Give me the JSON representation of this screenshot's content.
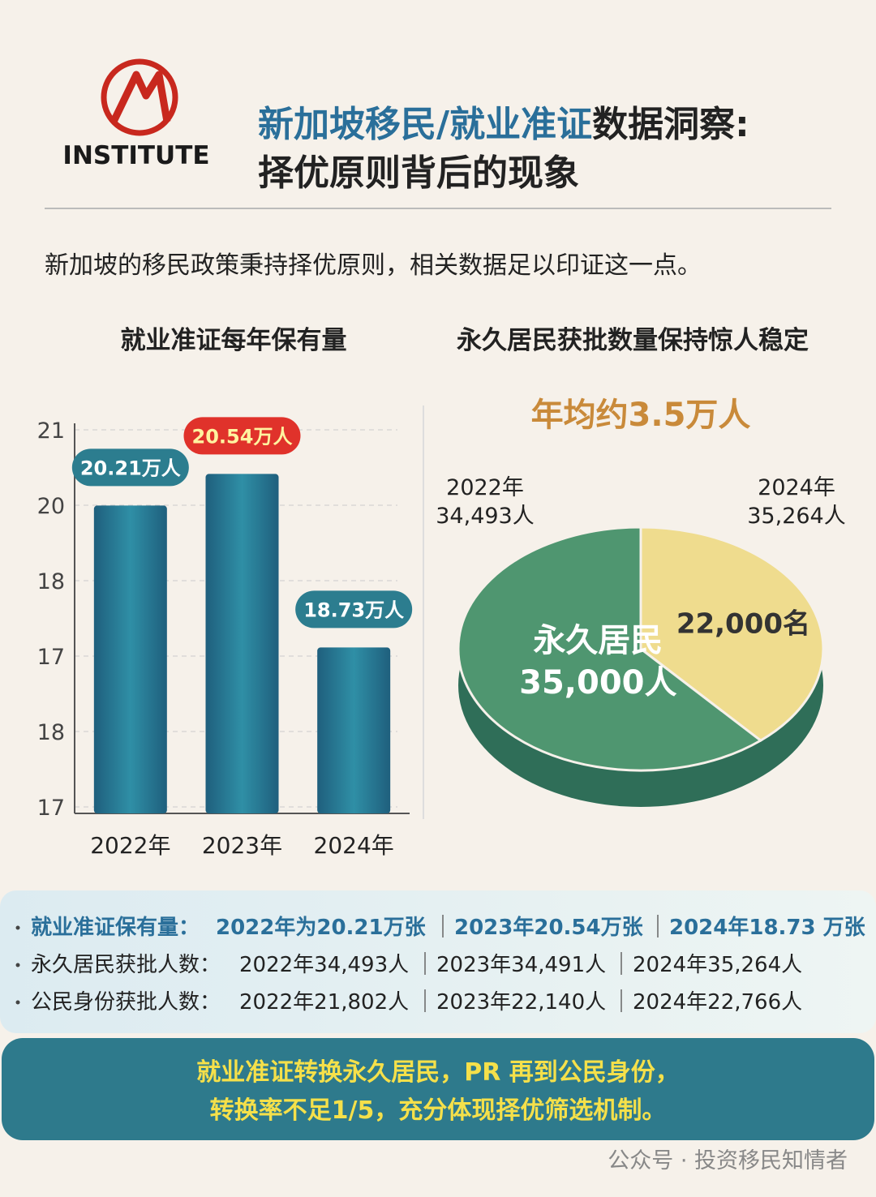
{
  "header": {
    "logo_text": "INSTITUTE",
    "title_highlight": "新加坡移民/就业准证",
    "title_rest": "数据洞察:",
    "title_line2": "择优原则背后的现象"
  },
  "intro": "新加坡的移民政策秉持择优原则，相关数据足以印证这一点。",
  "chart_data": [
    {
      "type": "bar",
      "title": "就业准证每年保有量",
      "categories": [
        "2022年",
        "2023年",
        "2024年"
      ],
      "values": [
        20.21,
        20.54,
        18.73
      ],
      "value_labels": [
        "20.21万人",
        "20.54万人",
        "18.73万人"
      ],
      "label_colors": [
        "#2c7d8f",
        "#e0322b",
        "#2c7d8f"
      ],
      "color": "#2b7e98",
      "ylim": [
        17,
        21
      ],
      "y_axis_labels": [
        "21",
        "20",
        "18",
        "17",
        "18",
        "17"
      ]
    },
    {
      "type": "pie",
      "title": "永久居民获批数量保持惊人稳定",
      "subtitle": "年均约3.5万人",
      "categories": [
        "永久居民",
        null
      ],
      "values": [
        35000,
        22000
      ],
      "value_labels": [
        "35,000人",
        "22,000名"
      ],
      "colors": [
        "#4f9670",
        "#efdc8e"
      ],
      "annotations": [
        {
          "year": "2022年",
          "count": "34,493人"
        },
        {
          "year": "2024年",
          "count": "35,264人"
        }
      ]
    }
  ],
  "stats": [
    {
      "label": "就业准证保有量：",
      "items": [
        "2022年为20.21万张",
        "2023年20.54万张",
        "2024年18.73 万张"
      ]
    },
    {
      "label": "永久居民获批人数：",
      "items": [
        "2022年34,493人",
        "2023年34,491人",
        "2024年35,264人"
      ]
    },
    {
      "label": "公民身份获批人数：",
      "items": [
        "2022年21,802人",
        "2023年22,140人",
        "2024年22,766人"
      ]
    }
  ],
  "conclusion": [
    "就业准证转换永久居民，PR 再到公民身份，",
    "转换率不足1/5，充分体现择优筛选机制。"
  ],
  "watermark": "公众号 · 投资移民知情者"
}
